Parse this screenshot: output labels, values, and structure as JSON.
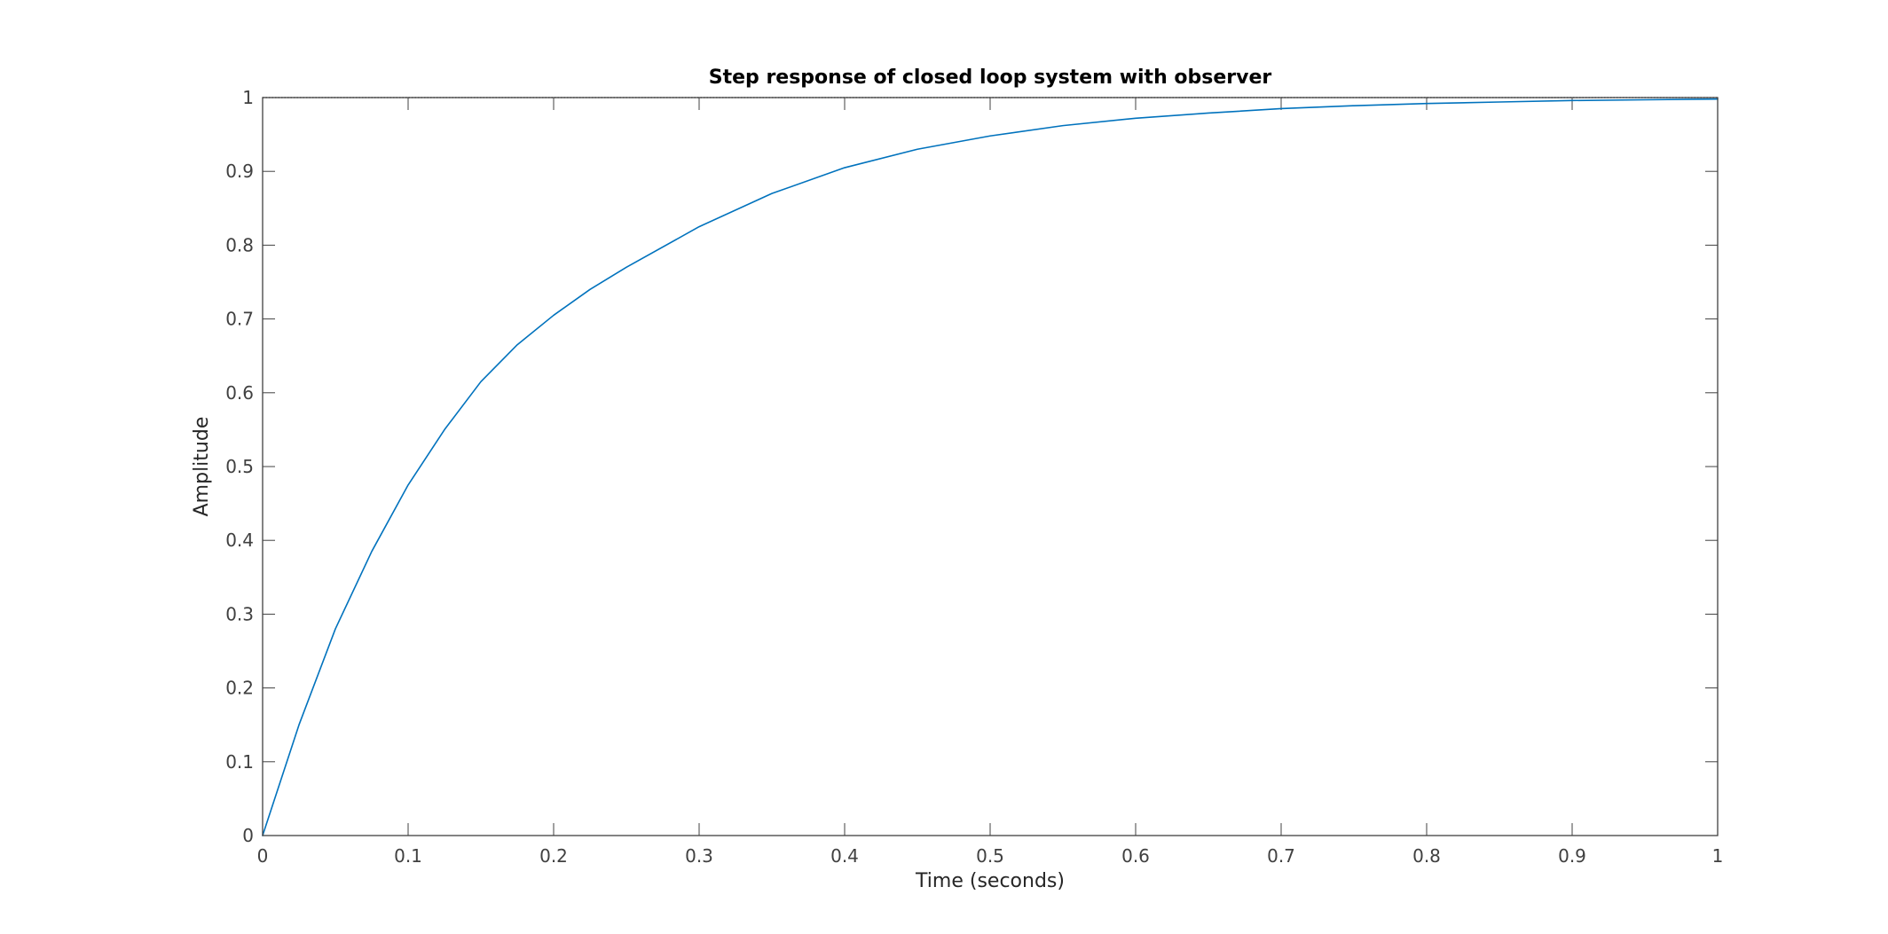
{
  "chart_data": {
    "type": "line",
    "title": "Step response of closed loop system with observer",
    "xlabel": "Time (seconds)",
    "ylabel": "Amplitude",
    "xlim": [
      0,
      1
    ],
    "ylim": [
      0,
      1
    ],
    "x_ticks": [
      0,
      0.1,
      0.2,
      0.3,
      0.4,
      0.5,
      0.6,
      0.7,
      0.8,
      0.9,
      1
    ],
    "x_tick_labels": [
      "0",
      "0.1",
      "0.2",
      "0.3",
      "0.4",
      "0.5",
      "0.6",
      "0.7",
      "0.8",
      "0.9",
      "1"
    ],
    "y_ticks": [
      0,
      0.1,
      0.2,
      0.3,
      0.4,
      0.5,
      0.6,
      0.7,
      0.8,
      0.9,
      1
    ],
    "y_tick_labels": [
      "0",
      "0.1",
      "0.2",
      "0.3",
      "0.4",
      "0.5",
      "0.6",
      "0.7",
      "0.8",
      "0.9",
      "1"
    ],
    "grid": false,
    "legend": "none",
    "series": [
      {
        "color": "#0072BD",
        "x": [
          0,
          0.025,
          0.05,
          0.075,
          0.1,
          0.125,
          0.15,
          0.175,
          0.2,
          0.225,
          0.25,
          0.3,
          0.35,
          0.4,
          0.45,
          0.5,
          0.55,
          0.6,
          0.65,
          0.7,
          0.75,
          0.8,
          0.85,
          0.9,
          0.95,
          1
        ],
        "y": [
          0,
          0.15,
          0.28,
          0.385,
          0.475,
          0.55,
          0.615,
          0.665,
          0.705,
          0.74,
          0.77,
          0.825,
          0.87,
          0.905,
          0.93,
          0.948,
          0.962,
          0.972,
          0.979,
          0.985,
          0.989,
          0.992,
          0.994,
          0.996,
          0.997,
          0.998
        ]
      }
    ],
    "reference_line": {
      "y": 1,
      "color": "#000000",
      "style": "dotted"
    },
    "colors": {
      "axes": "#404040",
      "background": "#ffffff"
    }
  }
}
